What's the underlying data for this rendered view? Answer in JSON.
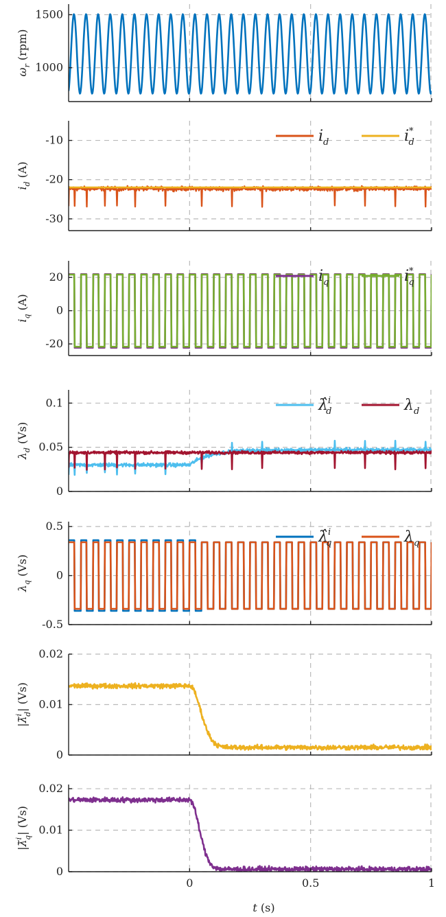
{
  "chart_data": [
    {
      "type": "line",
      "ylabel": "ω_r (rpm)",
      "yticks": [
        {
          "v": 1000,
          "label": "1000"
        },
        {
          "v": 1500,
          "label": "1500"
        }
      ],
      "ylim": [
        680,
        1600
      ],
      "xlim": [
        -0.5,
        1.0
      ],
      "series": [
        {
          "name": "",
          "color": "#0072bd",
          "kind": "sine",
          "mean": 1130,
          "amp": 375,
          "freq": 20,
          "phase": -1.2
        }
      ]
    },
    {
      "type": "line",
      "ylabel": "i_d (A)",
      "yticks": [
        {
          "v": -30,
          "label": "-30"
        },
        {
          "v": -20,
          "label": "-20"
        },
        {
          "v": -10,
          "label": "-10"
        }
      ],
      "ylim": [
        -33,
        -5
      ],
      "xlim": [
        -0.5,
        1.0
      ],
      "legend": [
        {
          "symbol": "i",
          "sub": "d",
          "sup": ""
        },
        {
          "symbol": "i",
          "sub": "d",
          "sup": "*"
        }
      ],
      "series": [
        {
          "name": "i_d",
          "color": "#d95319",
          "kind": "noisy",
          "level": -22.3,
          "noise": 1.3,
          "spike_period": 0.025,
          "spike_amp": 4.5
        },
        {
          "name": "i*_d",
          "color": "#edb120",
          "kind": "flat",
          "level": -22.0
        }
      ]
    },
    {
      "type": "line",
      "ylabel": "i_q (A)",
      "yticks": [
        {
          "v": -20,
          "label": "-20"
        },
        {
          "v": 0,
          "label": "0"
        },
        {
          "v": 20,
          "label": "20"
        }
      ],
      "ylim": [
        -27,
        30
      ],
      "xlim": [
        -0.5,
        1.0
      ],
      "legend": [
        {
          "symbol": "i",
          "sub": "q",
          "sup": ""
        },
        {
          "symbol": "i",
          "sub": "q",
          "sup": "*"
        }
      ],
      "series": [
        {
          "name": "i_q",
          "color": "#7e2f8e",
          "kind": "square",
          "high": 22,
          "low": -22.3,
          "freq": 20,
          "phase": 0.0
        },
        {
          "name": "i*_q",
          "color": "#77ac30",
          "kind": "square",
          "high": 21.7,
          "low": -21.7,
          "freq": 20,
          "phase": 0.0
        }
      ]
    },
    {
      "type": "line",
      "ylabel": "λ_d (Vs)",
      "yticks": [
        {
          "v": 0,
          "label": "0"
        },
        {
          "v": 0.05,
          "label": "0.05"
        },
        {
          "v": 0.1,
          "label": "0.1"
        }
      ],
      "ylim": [
        0,
        0.115
      ],
      "xlim": [
        -0.5,
        1.0
      ],
      "legend": [
        {
          "symbol": "λ̂",
          "sub": "d",
          "sup": "i"
        },
        {
          "symbol": "λ",
          "sub": "d",
          "sup": ""
        }
      ],
      "series": [
        {
          "name": "λ̂ⁱ_d",
          "color": "#4dbeee",
          "kind": "converge_noisy",
          "start": 0.03,
          "end": 0.047,
          "t0": 0.0,
          "tau": 0.08,
          "noise": 0.005,
          "spike_period": 0.025,
          "spike_amp": 0.01
        },
        {
          "name": "λ_d",
          "color": "#a2142f",
          "kind": "noisy",
          "level": 0.044,
          "noise": 0.004,
          "spike_period": 0.025,
          "spike_amp": 0.018
        }
      ]
    },
    {
      "type": "line",
      "ylabel": "λ_q (Vs)",
      "yticks": [
        {
          "v": -0.5,
          "label": "-0.5"
        },
        {
          "v": 0,
          "label": "0"
        },
        {
          "v": 0.5,
          "label": "0.5"
        }
      ],
      "ylim": [
        -0.5,
        0.55
      ],
      "xlim": [
        -0.5,
        1.0
      ],
      "legend": [
        {
          "symbol": "λ̂",
          "sub": "q",
          "sup": "i"
        },
        {
          "symbol": "λ",
          "sub": "q",
          "sup": ""
        }
      ],
      "series": [
        {
          "name": "λ̂ⁱ_q",
          "color": "#0072bd",
          "kind": "square_converge",
          "high": 0.36,
          "low": -0.36,
          "high2": 0.34,
          "low2": -0.34,
          "freq": 20,
          "phase": 0.0
        },
        {
          "name": "λ_q",
          "color": "#d95319",
          "kind": "square",
          "high": 0.34,
          "low": -0.34,
          "freq": 20,
          "phase": 0.0
        }
      ]
    },
    {
      "type": "line",
      "ylabel": "|λ̃ⁱ_d| (Vs)",
      "yticks": [
        {
          "v": 0,
          "label": "0"
        },
        {
          "v": 0.01,
          "label": "0.01"
        },
        {
          "v": 0.02,
          "label": "0.02"
        }
      ],
      "ylim": [
        0,
        0.02
      ],
      "xlim": [
        -0.5,
        1.0
      ],
      "series": [
        {
          "name": "",
          "color": "#edb120",
          "kind": "decay_noisy",
          "start": 0.0137,
          "end": 0.0015,
          "t0": 0.0,
          "tau": 0.07,
          "noise": 0.0007
        }
      ]
    },
    {
      "type": "line",
      "ylabel": "|λ̃ⁱ_q| (Vs)",
      "yticks": [
        {
          "v": 0,
          "label": "0"
        },
        {
          "v": 0.01,
          "label": "0.01"
        },
        {
          "v": 0.02,
          "label": "0.02"
        }
      ],
      "ylim": [
        0,
        0.021
      ],
      "xlim": [
        -0.5,
        1.0
      ],
      "xticks": [
        {
          "v": 0,
          "label": "0"
        },
        {
          "v": 0.5,
          "label": "0.5"
        },
        {
          "v": 1,
          "label": "1"
        }
      ],
      "xlabel": "t (s)",
      "series": [
        {
          "name": "",
          "color": "#7e2f8e",
          "kind": "decay_noisy",
          "start": 0.0173,
          "end": 0.0006,
          "t0": 0.0,
          "tau": 0.06,
          "noise": 0.0009
        }
      ]
    }
  ],
  "panel_label_markup": [
    {
      "main": "ω",
      "sub": "r",
      "tail": " (rpm)"
    },
    {
      "main": "i",
      "sub": "d",
      "tail": " (A)"
    },
    {
      "main": "i",
      "sub": "q",
      "tail": " (A)"
    },
    {
      "main": "λ",
      "sub": "d",
      "tail": " (Vs)"
    },
    {
      "main": "λ",
      "sub": "q",
      "tail": " (Vs)"
    },
    {
      "main": "|λ̃",
      "sub": "d",
      "sup": "i",
      "tail": "| (Vs)"
    },
    {
      "main": "|λ̃",
      "sub": "q",
      "sup": "i",
      "tail": "| (Vs)"
    }
  ]
}
